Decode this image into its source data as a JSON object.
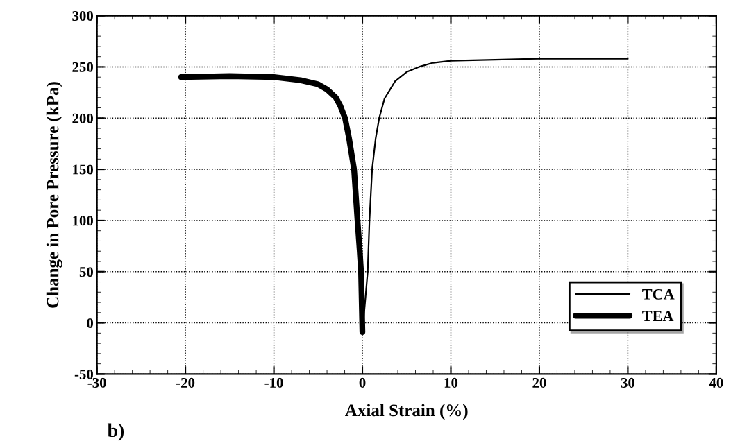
{
  "chart_data": {
    "type": "line",
    "xlabel": "Axial Strain (%)",
    "ylabel": "Change in Pore Pressure (kPa)",
    "xlim": [
      -30,
      40
    ],
    "xticks": [
      -30,
      -20,
      -10,
      0,
      10,
      20,
      30,
      40
    ],
    "ylim": [
      -50,
      300
    ],
    "yticks": [
      -50,
      0,
      50,
      100,
      150,
      200,
      250,
      300
    ],
    "grid": true,
    "legend": "lower right",
    "marker": "none",
    "line_style": "solid",
    "annotations": [
      "b)"
    ],
    "series": [
      {
        "name": "TCA",
        "color": "#000000",
        "x": [
          0,
          0.3,
          0.6,
          0.8,
          1.1,
          1.5,
          1.9,
          2.5,
          3.7,
          5.0,
          6.4,
          8,
          10,
          15,
          20,
          25,
          30
        ],
        "values": [
          -9,
          20,
          50,
          100,
          150,
          180,
          200,
          219,
          236,
          245,
          250,
          254,
          256,
          257,
          258,
          258,
          258
        ]
      },
      {
        "name": "TEA",
        "color": "#000000",
        "x": [
          -20.5,
          -15,
          -10,
          -7,
          -5,
          -4,
          -3,
          -2.5,
          -1.96,
          -1.5,
          -0.94,
          -0.55,
          -0.3,
          -0.15,
          0
        ],
        "values": [
          240,
          241,
          240,
          237,
          233,
          228,
          220,
          212,
          200,
          180,
          150,
          100,
          70,
          50,
          -9
        ]
      }
    ]
  }
}
